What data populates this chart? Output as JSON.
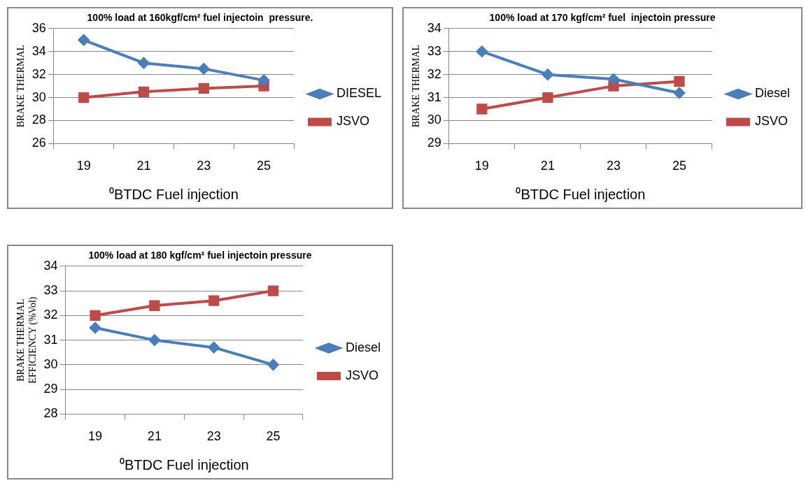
{
  "chart_data": [
    {
      "type": "line",
      "title": "100% load at 160kgf/cm² fuel injectoin  pressure.",
      "xlabel": "⁰BTDC Fuel injection",
      "ylabel": "BRAKE THERMAL",
      "categories": [
        "19",
        "21",
        "23",
        "25"
      ],
      "series": [
        {
          "name": "DIESEL",
          "color": "#4a7ebb",
          "marker": "diamond",
          "values": [
            35,
            33,
            32.5,
            31.5
          ]
        },
        {
          "name": "JSVO",
          "color": "#be4b48",
          "marker": "square",
          "values": [
            30,
            30.5,
            30.8,
            31
          ]
        }
      ],
      "ylim": [
        26,
        36
      ],
      "yticks": [
        26,
        28,
        30,
        32,
        34,
        36
      ],
      "grid": "y",
      "legend": "right"
    },
    {
      "type": "line",
      "title": "100% load at 170 kgf/cm² fuel  injectoin pressure",
      "xlabel": "⁰BTDC Fuel injection",
      "ylabel": "BRAKE THERMAL",
      "categories": [
        "19",
        "21",
        "23",
        "25"
      ],
      "series": [
        {
          "name": "Diesel",
          "color": "#4a7ebb",
          "marker": "diamond",
          "values": [
            33,
            32,
            31.8,
            31.2
          ]
        },
        {
          "name": "JSVO",
          "color": "#be4b48",
          "marker": "square",
          "values": [
            30.5,
            31,
            31.5,
            31.7
          ]
        }
      ],
      "ylim": [
        29,
        34
      ],
      "yticks": [
        29,
        30,
        31,
        32,
        33,
        34
      ],
      "grid": "y",
      "legend": "right"
    },
    {
      "type": "line",
      "title": "100% load at 180 kgf/cm² fuel injectoin pressure",
      "xlabel": "⁰BTDC Fuel injection",
      "ylabel": "BRAKE THERMAL EFFICIENCY (%Vol)",
      "categories": [
        "19",
        "21",
        "23",
        "25"
      ],
      "series": [
        {
          "name": "Diesel",
          "color": "#4a7ebb",
          "marker": "diamond",
          "values": [
            31.5,
            31,
            30.7,
            30
          ]
        },
        {
          "name": "JSVO",
          "color": "#be4b48",
          "marker": "square",
          "values": [
            32,
            32.4,
            32.6,
            33
          ]
        }
      ],
      "ylim": [
        28,
        34
      ],
      "yticks": [
        28,
        29,
        30,
        31,
        32,
        33,
        34
      ],
      "grid": "y",
      "legend": "right"
    }
  ]
}
